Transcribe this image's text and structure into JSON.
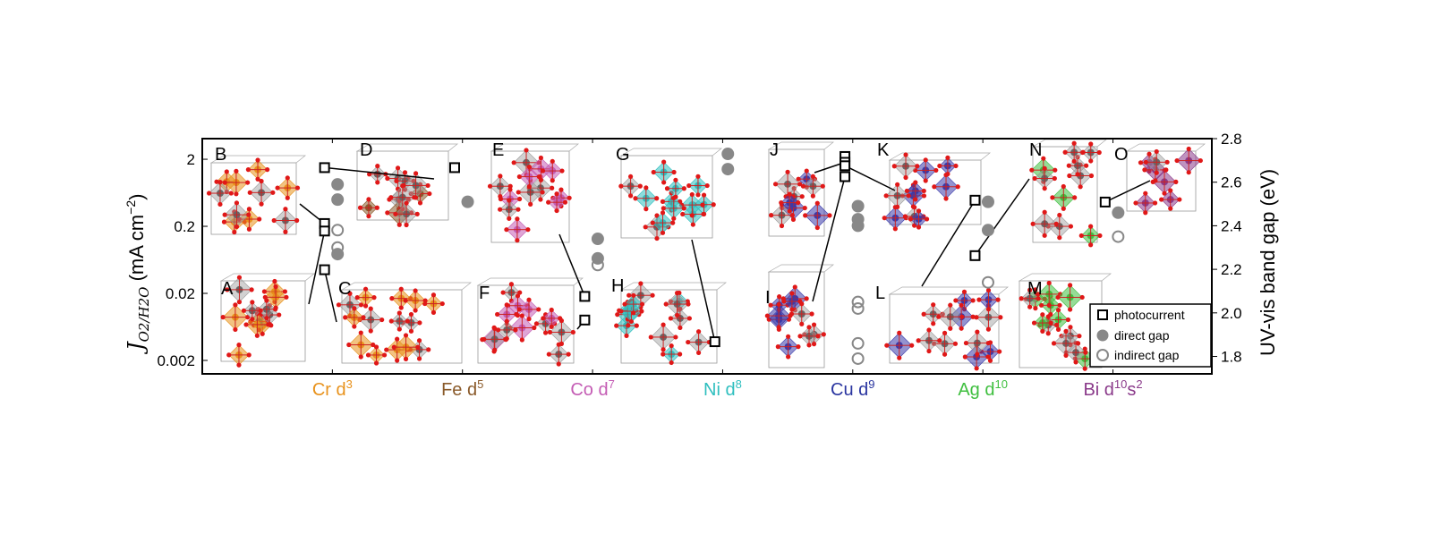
{
  "chart_data": {
    "type": "scatter",
    "title": "",
    "xlabel": "",
    "ylabel_left": "J",
    "ylabel_left_sub": "O2/H2O",
    "ylabel_left_units": "(mA cm",
    "ylabel_left_units_exp": "−2",
    "ylabel_left_units_close": ")",
    "ylabel_right": "UV-vis band gap (eV)",
    "left_axis": {
      "scale": "log",
      "range": [
        0.00126,
        4.06
      ],
      "ticks": [
        2,
        0.2,
        0.02,
        0.002
      ],
      "tick_labels": [
        "2",
        "0.2",
        "0.02",
        "0.002"
      ]
    },
    "right_axis": {
      "scale": "linear",
      "range": [
        1.72,
        2.8
      ],
      "ticks": [
        2.8,
        2.6,
        2.4,
        2.2,
        2.0,
        1.8
      ],
      "tick_labels": [
        "2.8",
        "2.6",
        "2.4",
        "2.2",
        "2.0",
        "1.8"
      ]
    },
    "x_range": [
      -1,
      6.76
    ],
    "categories": [
      {
        "base": "Cr d",
        "sup": "3",
        "color": "#e8921c"
      },
      {
        "base": "Fe d",
        "sup": "5",
        "color": "#8a5a2a"
      },
      {
        "base": "Co d",
        "sup": "7",
        "color": "#c45cb4"
      },
      {
        "base": "Ni d",
        "sup": "8",
        "color": "#2fbfbf"
      },
      {
        "base": "Cu d",
        "sup": "9",
        "color": "#2a35a0"
      },
      {
        "base": "Ag d",
        "sup": "10",
        "color": "#3fbf3f"
      },
      {
        "base": "Bi d",
        "sup": "10",
        "tail": "s",
        "sup2": "2",
        "color": "#8a3a8a"
      }
    ],
    "series": [
      {
        "name": "photocurrent",
        "axis": "left",
        "marker": "square",
        "points": [
          [
            -0.06,
            0.22
          ],
          [
            -0.06,
            0.17
          ],
          [
            -0.06,
            0.045
          ],
          [
            -0.06,
            1.5
          ],
          [
            0.94,
            1.5
          ],
          [
            1.94,
            0.018
          ],
          [
            1.94,
            0.008
          ],
          [
            2.94,
            0.0038
          ],
          [
            3.94,
            2.2
          ],
          [
            3.94,
            1.8
          ],
          [
            3.94,
            1.6
          ],
          [
            3.94,
            1.1
          ],
          [
            4.94,
            0.49
          ],
          [
            4.94,
            0.073
          ],
          [
            5.94,
            0.46
          ]
        ]
      },
      {
        "name": "direct gap",
        "axis": "right",
        "marker": "filled-circle",
        "points": [
          [
            0.04,
            2.59
          ],
          [
            0.04,
            2.52
          ],
          [
            0.04,
            2.27
          ],
          [
            1.04,
            2.51
          ],
          [
            2.04,
            2.34
          ],
          [
            2.04,
            2.25
          ],
          [
            3.04,
            2.73
          ],
          [
            3.04,
            2.66
          ],
          [
            4.04,
            2.49
          ],
          [
            4.04,
            2.43
          ],
          [
            4.04,
            2.4
          ],
          [
            5.04,
            2.51
          ],
          [
            5.04,
            2.38
          ],
          [
            6.04,
            2.46
          ]
        ]
      },
      {
        "name": "indirect gap",
        "axis": "right",
        "marker": "open-circle",
        "points": [
          [
            0.04,
            2.38
          ],
          [
            0.04,
            2.3
          ],
          [
            2.04,
            2.22
          ],
          [
            4.04,
            2.05
          ],
          [
            4.04,
            2.02
          ],
          [
            4.04,
            1.86
          ],
          [
            4.04,
            1.79
          ],
          [
            5.04,
            2.14
          ],
          [
            6.04,
            2.35
          ]
        ]
      }
    ],
    "legend": {
      "placement": "bottom-right",
      "entries": [
        "photocurrent",
        "direct gap",
        "indirect gap"
      ]
    },
    "structures": [
      {
        "label": "A",
        "metal_color": "#e8921c"
      },
      {
        "label": "B",
        "metal_color": "#e8921c"
      },
      {
        "label": "C",
        "metal_color": "#e8921c"
      },
      {
        "label": "D",
        "metal_color": "#8a5a2a"
      },
      {
        "label": "E",
        "metal_color": "#c45cb4"
      },
      {
        "label": "F",
        "metal_color": "#c45cb4"
      },
      {
        "label": "G",
        "metal_color": "#2fbfbf"
      },
      {
        "label": "H",
        "metal_color": "#2fbfbf"
      },
      {
        "label": "I",
        "metal_color": "#3a3aaa"
      },
      {
        "label": "J",
        "metal_color": "#3a3aaa"
      },
      {
        "label": "K",
        "metal_color": "#3a3aaa"
      },
      {
        "label": "L",
        "metal_color": "#3a3aaa"
      },
      {
        "label": "M",
        "metal_color": "#3fbf3f"
      },
      {
        "label": "N",
        "metal_color": "#3fbf3f"
      },
      {
        "label": "O",
        "metal_color": "#8a3a8a"
      }
    ]
  }
}
